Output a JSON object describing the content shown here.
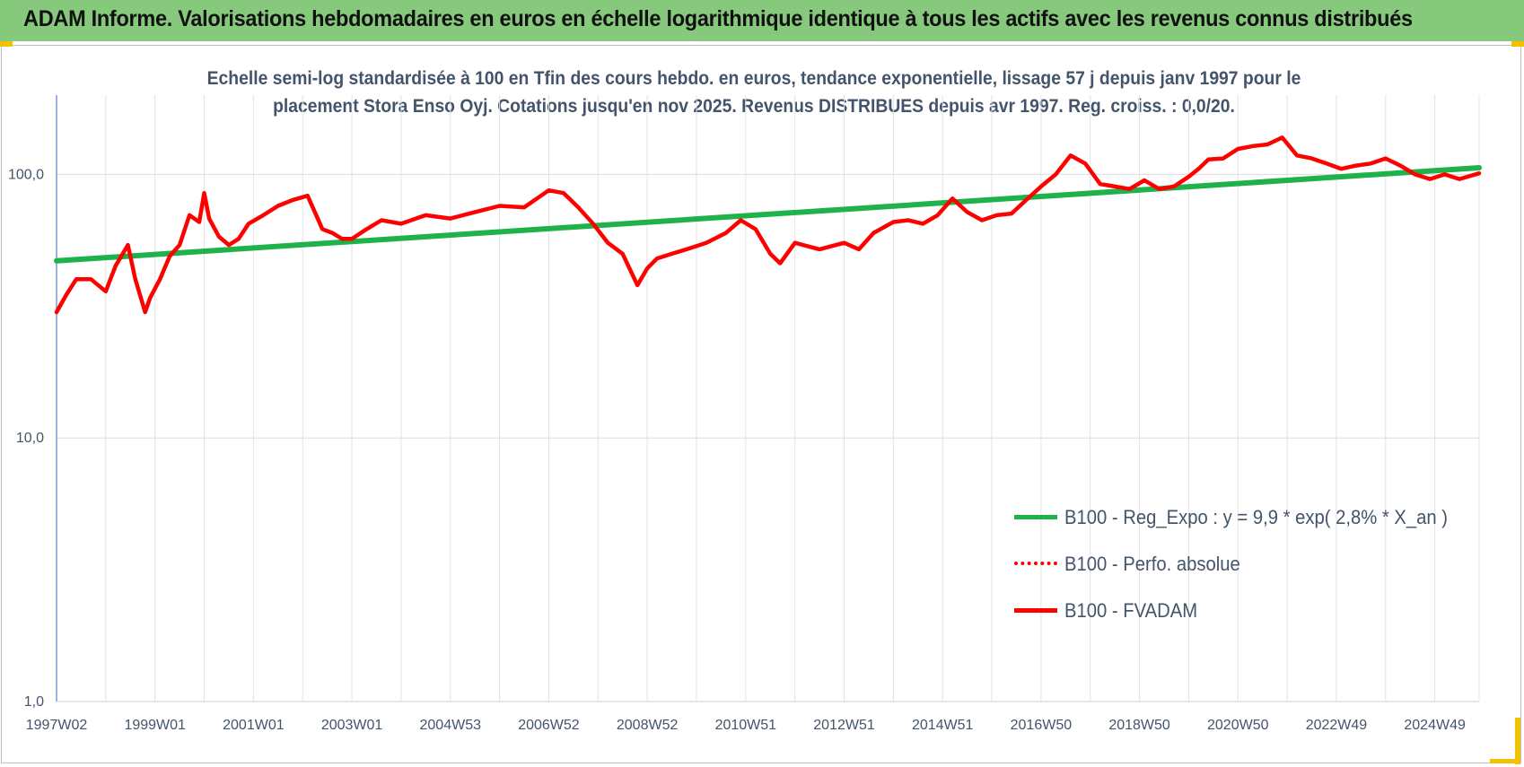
{
  "header": {
    "title": "ADAM Informe. Valorisations hebdomadaires en euros en échelle logarithmique identique à tous les actifs avec les revenus connus distribués"
  },
  "chart_data": {
    "type": "line",
    "subtitle_line1": "Echelle semi-log standardisée à 100 en Tfin des cours hebdo. en euros, tendance exponentielle, lissage 57 j depuis janv 1997 pour le",
    "subtitle_line2": "placement Stora Enso Oyj. Cotations jusqu'en nov 2025.  Revenus DISTRIBUES depuis avr 1997. Reg. croiss. : 0,0/20.",
    "y_scale": "log",
    "ylim": [
      1,
      200
    ],
    "y_ticks": [
      "1,0",
      "10,0",
      "100,0"
    ],
    "x_range": [
      1997.0,
      2025.9
    ],
    "x_ticks": [
      "1997W02",
      "1999W01",
      "2001W01",
      "2003W01",
      "2004W53",
      "2006W52",
      "2008W52",
      "2010W51",
      "2012W51",
      "2014W51",
      "2016W50",
      "2018W50",
      "2020W50",
      "2022W49",
      "2024W49"
    ],
    "x_tick_years": [
      1997.0,
      1999.0,
      2001.0,
      2003.0,
      2005.0,
      2007.0,
      2009.0,
      2011.0,
      2013.0,
      2015.0,
      2017.0,
      2019.0,
      2021.0,
      2023.0,
      2025.0
    ],
    "grid": true,
    "legend_position": "bottom-right",
    "series": [
      {
        "name": "B100 - Reg_Expo : y = 9,9 * exp( 2,8% *  X_an )",
        "color": "#1fb24a",
        "style": "solid",
        "x": [
          1997.0,
          2025.9
        ],
        "values": [
          47,
          106
        ]
      },
      {
        "name": "B100 - Perfo. absolue",
        "color": "#ff0000",
        "style": "dotted",
        "x": [],
        "values": []
      },
      {
        "name": "B100 - FVADAM",
        "color": "#ff0000",
        "style": "solid",
        "x": [
          1997.0,
          1997.2,
          1997.4,
          1997.7,
          1998.0,
          1998.2,
          1998.45,
          1998.6,
          1998.8,
          1998.9,
          1999.1,
          1999.3,
          1999.5,
          1999.7,
          1999.9,
          2000.0,
          2000.1,
          2000.3,
          2000.5,
          2000.7,
          2000.9,
          2001.2,
          2001.5,
          2001.8,
          2002.1,
          2002.4,
          2002.6,
          2002.8,
          2003.0,
          2003.3,
          2003.6,
          2004.0,
          2004.5,
          2005.0,
          2005.5,
          2006.0,
          2006.5,
          2007.0,
          2007.3,
          2007.6,
          2007.9,
          2008.2,
          2008.5,
          2008.8,
          2009.0,
          2009.2,
          2009.5,
          2009.8,
          2010.2,
          2010.6,
          2010.9,
          2011.2,
          2011.5,
          2011.7,
          2012.0,
          2012.5,
          2013.0,
          2013.3,
          2013.6,
          2014.0,
          2014.3,
          2014.6,
          2014.9,
          2015.2,
          2015.5,
          2015.8,
          2016.1,
          2016.4,
          2016.7,
          2017.0,
          2017.3,
          2017.6,
          2017.9,
          2018.2,
          2018.5,
          2018.8,
          2019.1,
          2019.4,
          2019.7,
          2020.0,
          2020.2,
          2020.4,
          2020.7,
          2021.0,
          2021.3,
          2021.6,
          2021.9,
          2022.2,
          2022.5,
          2022.8,
          2023.1,
          2023.4,
          2023.7,
          2024.0,
          2024.3,
          2024.6,
          2024.9,
          2025.2,
          2025.5,
          2025.9
        ],
        "values": [
          30,
          35,
          40,
          40,
          36,
          45,
          54,
          40,
          30,
          34,
          40,
          49,
          54,
          70,
          66,
          85,
          68,
          58,
          54,
          57,
          65,
          70,
          76,
          80,
          83,
          62,
          60,
          57,
          57,
          62,
          67,
          65,
          70,
          68,
          72,
          76,
          75,
          87,
          85,
          75,
          65,
          55,
          50,
          38,
          44,
          48,
          50,
          52,
          55,
          60,
          67,
          62,
          50,
          46,
          55,
          52,
          55,
          52,
          60,
          66,
          67,
          65,
          70,
          81,
          72,
          67,
          70,
          71,
          80,
          90,
          100,
          118,
          110,
          92,
          90,
          88,
          95,
          88,
          90,
          98,
          105,
          114,
          115,
          125,
          128,
          130,
          138,
          118,
          115,
          110,
          105,
          108,
          110,
          115,
          108,
          100,
          96,
          100,
          96,
          101
        ]
      }
    ]
  }
}
